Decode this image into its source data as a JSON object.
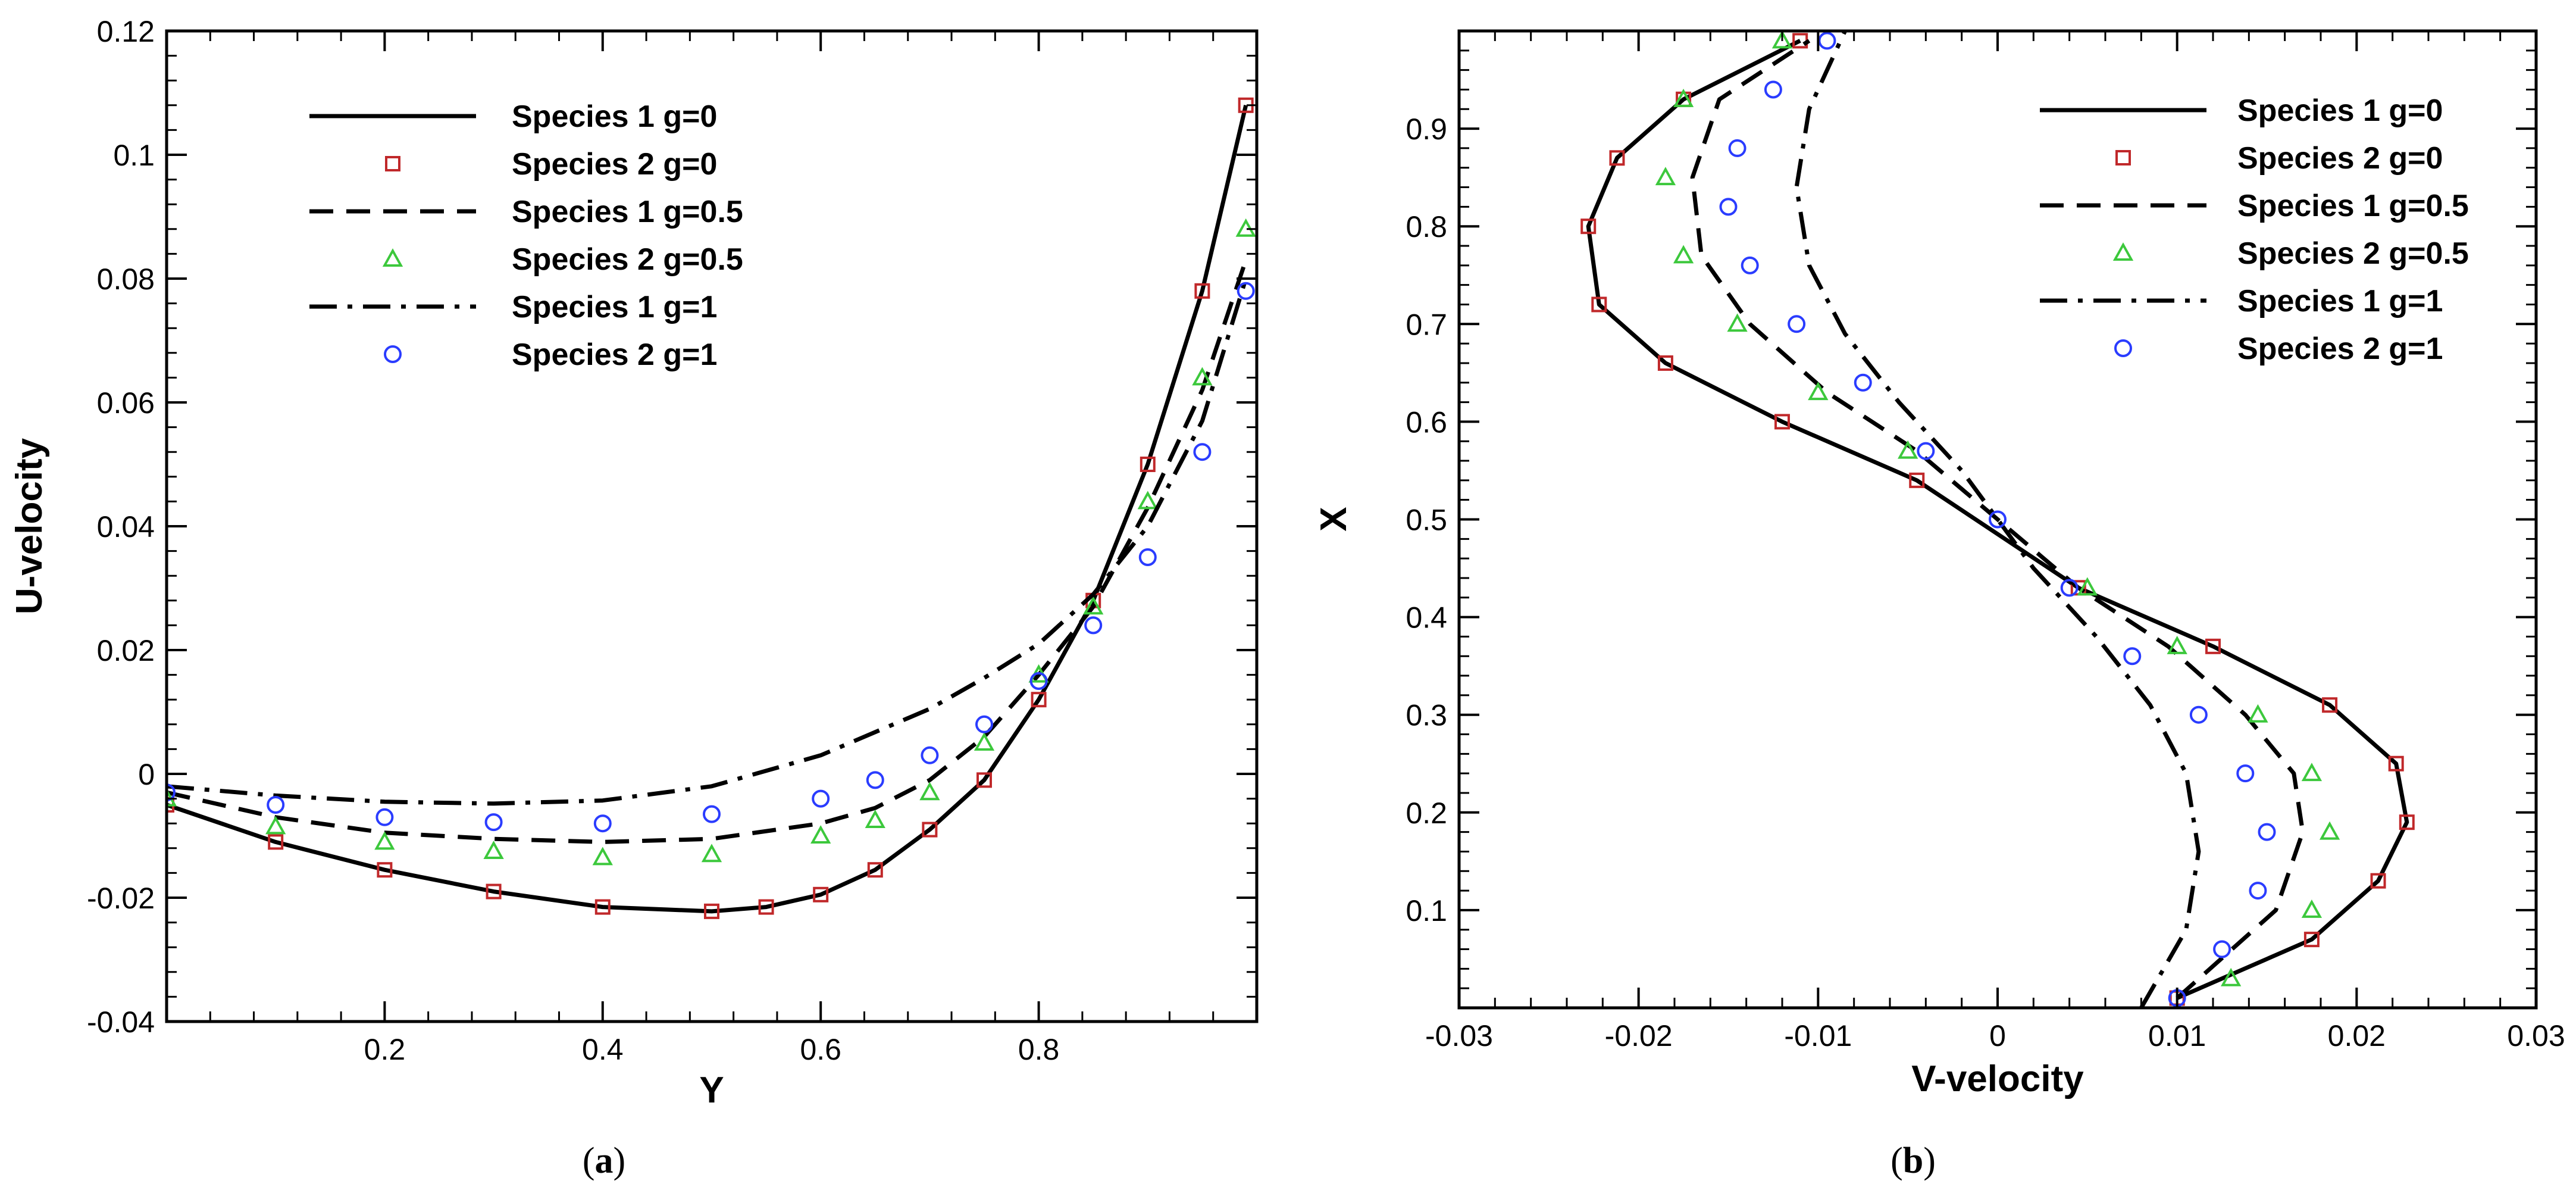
{
  "chart_data": [
    {
      "type": "scatter",
      "panel": "a",
      "caption_paren_open": "(",
      "caption_letter": "a",
      "caption_paren_close": ")",
      "xlabel": "Y",
      "ylabel": "U-velocity",
      "xlim": [
        0,
        1
      ],
      "ylim": [
        -0.04,
        0.12
      ],
      "xticks": [
        {
          "value": 0.2,
          "label": "0.2"
        },
        {
          "value": 0.4,
          "label": "0.4"
        },
        {
          "value": 0.6,
          "label": "0.6"
        },
        {
          "value": 0.8,
          "label": "0.8"
        }
      ],
      "yticks": [
        {
          "value": -0.04,
          "label": "-0.04"
        },
        {
          "value": -0.02,
          "label": "-0.02"
        },
        {
          "value": 0,
          "label": "0"
        },
        {
          "value": 0.02,
          "label": "0.02"
        },
        {
          "value": 0.04,
          "label": "0.04"
        },
        {
          "value": 0.06,
          "label": "0.06"
        },
        {
          "value": 0.08,
          "label": "0.08"
        },
        {
          "value": 0.1,
          "label": "0.1"
        },
        {
          "value": 0.12,
          "label": "0.12"
        }
      ],
      "legend_position": "top-left",
      "series": [
        {
          "name": "Species 1 g=0",
          "style": "solid",
          "color": "#000000",
          "x": [
            0.0,
            0.1,
            0.2,
            0.3,
            0.4,
            0.5,
            0.55,
            0.6,
            0.65,
            0.7,
            0.75,
            0.8,
            0.85,
            0.9,
            0.95,
            0.99
          ],
          "y": [
            -0.005,
            -0.011,
            -0.0155,
            -0.019,
            -0.0215,
            -0.0222,
            -0.0215,
            -0.0195,
            -0.0155,
            -0.009,
            -0.001,
            0.012,
            0.028,
            0.05,
            0.078,
            0.108
          ]
        },
        {
          "name": "Species 2 g=0",
          "style": "marker",
          "marker": "square",
          "color": "#c0282a",
          "x": [
            0.0,
            0.1,
            0.2,
            0.3,
            0.4,
            0.5,
            0.55,
            0.6,
            0.65,
            0.7,
            0.75,
            0.8,
            0.85,
            0.9,
            0.95,
            0.99
          ],
          "y": [
            -0.005,
            -0.011,
            -0.0155,
            -0.019,
            -0.0215,
            -0.0222,
            -0.0215,
            -0.0195,
            -0.0155,
            -0.009,
            -0.001,
            0.012,
            0.028,
            0.05,
            0.078,
            0.108
          ]
        },
        {
          "name": "Species 1 g=0.5",
          "style": "dashed",
          "color": "#000000",
          "x": [
            0.0,
            0.1,
            0.2,
            0.3,
            0.4,
            0.5,
            0.6,
            0.65,
            0.7,
            0.75,
            0.8,
            0.85,
            0.9,
            0.95,
            0.99
          ],
          "y": [
            -0.003,
            -0.007,
            -0.0095,
            -0.0105,
            -0.011,
            -0.0105,
            -0.008,
            -0.0055,
            -0.001,
            0.006,
            0.016,
            0.027,
            0.043,
            0.062,
            0.083
          ]
        },
        {
          "name": "Species 2 g=0.5",
          "style": "marker",
          "marker": "triangle",
          "color": "#3cc83c",
          "x": [
            0.0,
            0.1,
            0.2,
            0.3,
            0.4,
            0.5,
            0.6,
            0.65,
            0.7,
            0.75,
            0.8,
            0.85,
            0.9,
            0.95,
            0.99
          ],
          "y": [
            -0.004,
            -0.0085,
            -0.011,
            -0.0125,
            -0.0135,
            -0.013,
            -0.01,
            -0.0075,
            -0.003,
            0.005,
            0.016,
            0.027,
            0.044,
            0.064,
            0.088
          ]
        },
        {
          "name": "Species 1 g=1",
          "style": "dashdot",
          "color": "#000000",
          "x": [
            0.0,
            0.1,
            0.2,
            0.3,
            0.4,
            0.5,
            0.6,
            0.7,
            0.75,
            0.8,
            0.85,
            0.9,
            0.95,
            0.99
          ],
          "y": [
            -0.002,
            -0.0035,
            -0.0045,
            -0.0048,
            -0.0043,
            -0.002,
            0.003,
            0.0105,
            0.0155,
            0.021,
            0.029,
            0.04,
            0.057,
            0.08
          ]
        },
        {
          "name": "Species 2 g=1",
          "style": "marker",
          "marker": "circle",
          "color": "#2a3cff",
          "x": [
            0.0,
            0.1,
            0.2,
            0.3,
            0.4,
            0.5,
            0.6,
            0.65,
            0.7,
            0.75,
            0.8,
            0.85,
            0.9,
            0.95,
            0.99
          ],
          "y": [
            -0.003,
            -0.005,
            -0.007,
            -0.0078,
            -0.008,
            -0.0065,
            -0.004,
            -0.001,
            0.003,
            0.008,
            0.015,
            0.024,
            0.035,
            0.052,
            0.078
          ]
        }
      ]
    },
    {
      "type": "scatter",
      "panel": "b",
      "caption_paren_open": "(",
      "caption_letter": "b",
      "caption_paren_close": ")",
      "xlabel": "V-velocity",
      "ylabel": "X",
      "xlim": [
        -0.03,
        0.03
      ],
      "ylim": [
        0,
        1
      ],
      "xticks": [
        {
          "value": -0.03,
          "label": "-0.03"
        },
        {
          "value": -0.02,
          "label": "-0.02"
        },
        {
          "value": -0.01,
          "label": "-0.01"
        },
        {
          "value": 0,
          "label": "0"
        },
        {
          "value": 0.01,
          "label": "0.01"
        },
        {
          "value": 0.02,
          "label": "0.02"
        },
        {
          "value": 0.03,
          "label": "0.03"
        }
      ],
      "yticks": [
        {
          "value": 0.1,
          "label": "0.1"
        },
        {
          "value": 0.2,
          "label": "0.2"
        },
        {
          "value": 0.3,
          "label": "0.3"
        },
        {
          "value": 0.4,
          "label": "0.4"
        },
        {
          "value": 0.5,
          "label": "0.5"
        },
        {
          "value": 0.6,
          "label": "0.6"
        },
        {
          "value": 0.7,
          "label": "0.7"
        },
        {
          "value": 0.8,
          "label": "0.8"
        },
        {
          "value": 0.9,
          "label": "0.9"
        }
      ],
      "legend_position": "top-right",
      "series": [
        {
          "name": "Species 1 g=0",
          "style": "solid",
          "color": "#000000",
          "x": [
            0.01,
            0.0175,
            0.0212,
            0.0228,
            0.0222,
            0.0185,
            0.012,
            0.0045,
            -0.0045,
            -0.012,
            -0.0185,
            -0.0222,
            -0.0228,
            -0.0212,
            -0.0175,
            -0.011
          ],
          "y": [
            0.01,
            0.07,
            0.13,
            0.19,
            0.25,
            0.31,
            0.37,
            0.43,
            0.54,
            0.6,
            0.66,
            0.72,
            0.8,
            0.87,
            0.93,
            0.99
          ]
        },
        {
          "name": "Species 2 g=0",
          "style": "marker",
          "marker": "square",
          "color": "#c0282a",
          "x": [
            0.01,
            0.0175,
            0.0212,
            0.0228,
            0.0222,
            0.0185,
            0.012,
            0.0045,
            -0.0045,
            -0.012,
            -0.0185,
            -0.0222,
            -0.0228,
            -0.0212,
            -0.0175,
            -0.011
          ],
          "y": [
            0.01,
            0.07,
            0.13,
            0.19,
            0.25,
            0.31,
            0.37,
            0.43,
            0.54,
            0.6,
            0.66,
            0.72,
            0.8,
            0.87,
            0.93,
            0.99
          ]
        },
        {
          "name": "Species 1 g=0.5",
          "style": "dashed",
          "color": "#000000",
          "x": [
            0.01,
            0.0155,
            0.017,
            0.0165,
            0.0138,
            0.0095,
            0.0045,
            -0.0045,
            -0.0095,
            -0.0138,
            -0.0165,
            -0.017,
            -0.0155,
            -0.0105
          ],
          "y": [
            0.01,
            0.1,
            0.18,
            0.24,
            0.3,
            0.37,
            0.43,
            0.57,
            0.63,
            0.7,
            0.77,
            0.85,
            0.93,
            0.99
          ]
        },
        {
          "name": "Species 2 g=0.5",
          "style": "marker",
          "marker": "triangle",
          "color": "#3cc83c",
          "x": [
            0.013,
            0.0175,
            0.0185,
            0.0175,
            0.0145,
            0.01,
            0.005,
            -0.005,
            -0.01,
            -0.0145,
            -0.0175,
            -0.0185,
            -0.0175,
            -0.012
          ],
          "y": [
            0.03,
            0.1,
            0.18,
            0.24,
            0.3,
            0.37,
            0.43,
            0.57,
            0.63,
            0.7,
            0.77,
            0.85,
            0.93,
            0.99
          ]
        },
        {
          "name": "Species 1 g=1",
          "style": "dashdot",
          "color": "#000000",
          "x": [
            0.008,
            0.0105,
            0.0112,
            0.0105,
            0.0085,
            0.0055,
            0.002,
            -0.002,
            -0.0055,
            -0.0085,
            -0.0105,
            -0.0112,
            -0.0105,
            -0.0085
          ],
          "y": [
            0.0,
            0.08,
            0.16,
            0.24,
            0.31,
            0.38,
            0.45,
            0.55,
            0.62,
            0.69,
            0.76,
            0.84,
            0.92,
            1.0
          ]
        },
        {
          "name": "Species 2 g=1",
          "style": "marker",
          "marker": "circle",
          "color": "#2a3cff",
          "x": [
            0.01,
            0.0125,
            0.0145,
            0.015,
            0.0138,
            0.0112,
            0.0075,
            0.004,
            0.0,
            -0.004,
            -0.0075,
            -0.0112,
            -0.0138,
            -0.015,
            -0.0145,
            -0.0125,
            -0.0095
          ],
          "y": [
            0.01,
            0.06,
            0.12,
            0.18,
            0.24,
            0.3,
            0.36,
            0.43,
            0.5,
            0.57,
            0.64,
            0.7,
            0.76,
            0.82,
            0.88,
            0.94,
            0.99
          ]
        }
      ]
    }
  ]
}
